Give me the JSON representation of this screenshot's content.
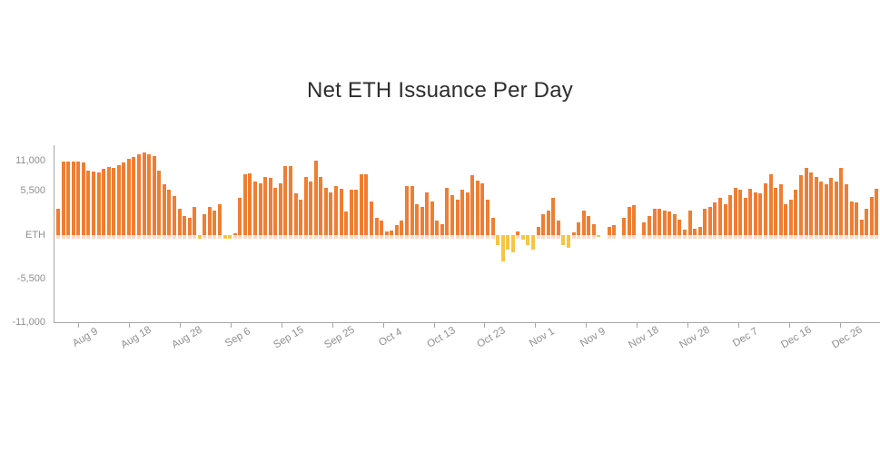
{
  "title": "Net ETH Issuance Per Day",
  "colors": {
    "positive_bar": "#EF7E32",
    "negative_bar": "#F6C544",
    "axis_line": "#A6A6A6",
    "tick_text": "#8F8F8F",
    "title_text": "#2D2D2D"
  },
  "y_axis": {
    "labels": [
      "11,000",
      "5,500",
      "ETH",
      "-5,500",
      "-11,000"
    ],
    "values": [
      11000,
      5500,
      0,
      -5500,
      -11000
    ]
  },
  "x_axis": {
    "tick_labels": [
      "Aug 9",
      "Aug 18",
      "Aug 28",
      "Sep 6",
      "Sep 15",
      "Sep 25",
      "Oct 4",
      "Oct 13",
      "Oct 23",
      "Nov 1",
      "Nov 9",
      "Nov 18",
      "Nov 28",
      "Dec 7",
      "Dec 16",
      "Dec 26"
    ]
  },
  "chart_data": {
    "type": "bar",
    "title": "Net ETH Issuance Per Day",
    "ylabel": "ETH",
    "ylim": [
      -11000,
      11000
    ],
    "y_ticks": [
      11000,
      5500,
      0,
      -5500,
      -11000
    ],
    "x_tick_labels": [
      "Aug 9",
      "Aug 18",
      "Aug 28",
      "Sep 6",
      "Sep 15",
      "Sep 25",
      "Oct 4",
      "Oct 13",
      "Oct 23",
      "Nov 1",
      "Nov 9",
      "Nov 18",
      "Nov 28",
      "Dec 7",
      "Dec 16",
      "Dec 26"
    ],
    "grid": false,
    "legend_position": "none",
    "series_name": "Net ETH issuance per day (ETH, one bar per day, values estimated from pixels)",
    "positive_color": "#EF7E32",
    "negative_color": "#F6C544",
    "values": [
      3300,
      9200,
      9200,
      9200,
      9200,
      9100,
      8050,
      7950,
      7800,
      8300,
      8500,
      8400,
      8750,
      9100,
      9500,
      9700,
      10100,
      10300,
      10100,
      9850,
      8050,
      6300,
      5650,
      4850,
      3300,
      2350,
      2150,
      3500,
      -500,
      2600,
      3500,
      3100,
      3850,
      -400,
      -400,
      200,
      4600,
      7650,
      7750,
      6700,
      6500,
      7250,
      7100,
      5950,
      6500,
      8600,
      8600,
      5200,
      4400,
      7250,
      6700,
      9350,
      7250,
      5950,
      5350,
      6100,
      5750,
      2900,
      5650,
      5650,
      7650,
      7650,
      4250,
      2150,
      1800,
      450,
      550,
      1300,
      1800,
      6100,
      6100,
      3850,
      3500,
      5350,
      4250,
      1800,
      1350,
      5950,
      5000,
      4400,
      5650,
      5350,
      7450,
      6750,
      6500,
      4400,
      2150,
      -1250,
      -3300,
      -1800,
      -2150,
      450,
      -600,
      -1250,
      -1800,
      1000,
      2600,
      3100,
      4600,
      1800,
      -1250,
      -1600,
      350,
      1600,
      3100,
      2350,
      1400,
      -250,
      0,
      1000,
      1300,
      0,
      2150,
      3500,
      3750,
      0,
      1600,
      2350,
      3300,
      3300,
      3100,
      2900,
      2600,
      1950,
      650,
      3100,
      850,
      1000,
      3300,
      3500,
      4100,
      4600,
      3850,
      5000,
      5950,
      5700,
      4600,
      5750,
      5350,
      5200,
      6500,
      7650,
      5950,
      6300,
      3850,
      4400,
      5650,
      7450,
      8400,
      7800,
      7250,
      6700,
      6300,
      7100,
      6700,
      8400,
      6300,
      4250,
      4100,
      1950,
      3300,
      4800,
      5750
    ]
  }
}
